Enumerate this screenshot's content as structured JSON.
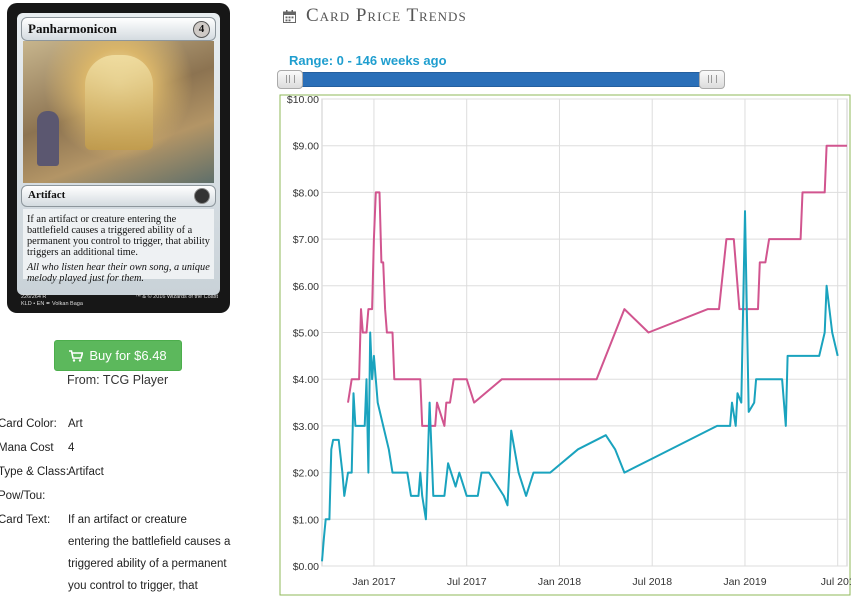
{
  "card": {
    "name": "Panharmonicon",
    "mana_cost": "4",
    "type_line": "Artifact",
    "rules_text": "If an artifact or creature entering the battlefield causes a triggered ability of a permanent you control to trigger, that ability triggers an additional time.",
    "flavor_text": "All who listen hear their own song, a unique melody played just for them.",
    "footer_number": "226/264 R",
    "footer_set": "KLD • EN ✒ Volkan Baga",
    "footer_copyright": "™ & © 2016 Wizards of the Coast"
  },
  "buy": {
    "label": "Buy for $6.48",
    "icon": "shopping-cart-icon",
    "color": "#5cb85c"
  },
  "from_text": "From: TCG Player",
  "info": [
    {
      "label": "Card Color:",
      "value": "Art"
    },
    {
      "label": "Mana Cost",
      "value": "4"
    },
    {
      "label": "Type & Class:",
      "value": "Artifact"
    },
    {
      "label": "Pow/Tou:",
      "value": ""
    },
    {
      "label": "Card Text:",
      "value": ""
    }
  ],
  "card_text_lines": [
    "If an artifact or creature",
    "entering the battlefield causes a",
    "triggered ability of a permanent",
    "you control to trigger, that"
  ],
  "trends": {
    "title": "Card Price Trends",
    "icon": "calendar-icon",
    "range_label": "Range: 0 - 146 weeks ago",
    "slider": {
      "min": 0,
      "max": 146,
      "low": 0,
      "high": 146,
      "track_color": "#2a6fb8"
    }
  },
  "chart_data": {
    "type": "line",
    "title": "",
    "xlabel": "",
    "ylabel": "",
    "ylim": [
      0,
      10
    ],
    "xlim": [
      2016.72,
      2019.55
    ],
    "grid": true,
    "legend": "none",
    "y_ticks": [
      "$0.00",
      "$1.00",
      "$2.00",
      "$3.00",
      "$4.00",
      "$5.00",
      "$6.00",
      "$7.00",
      "$8.00",
      "$9.00",
      "$10.00"
    ],
    "x_ticks": [
      {
        "label": "Jan 2017",
        "x": 2017.0
      },
      {
        "label": "Jul 2017",
        "x": 2017.5
      },
      {
        "label": "Jan 2018",
        "x": 2018.0
      },
      {
        "label": "Jul 2018",
        "x": 2018.5
      },
      {
        "label": "Jan 2019",
        "x": 2019.0
      },
      {
        "label": "Jul 201",
        "x": 2019.5
      }
    ],
    "series": [
      {
        "color": "#d1558f",
        "points": [
          [
            2016.86,
            3.5
          ],
          [
            2016.88,
            4.0
          ],
          [
            2016.92,
            4.0
          ],
          [
            2016.93,
            5.5
          ],
          [
            2016.94,
            5.0
          ],
          [
            2016.96,
            5.0
          ],
          [
            2016.97,
            5.5
          ],
          [
            2016.99,
            5.5
          ],
          [
            2017.0,
            7.0
          ],
          [
            2017.01,
            8.0
          ],
          [
            2017.03,
            8.0
          ],
          [
            2017.04,
            6.5
          ],
          [
            2017.05,
            6.5
          ],
          [
            2017.06,
            5.5
          ],
          [
            2017.07,
            5.0
          ],
          [
            2017.1,
            5.0
          ],
          [
            2017.11,
            4.0
          ],
          [
            2017.25,
            4.0
          ],
          [
            2017.26,
            3.0
          ],
          [
            2017.33,
            3.0
          ],
          [
            2017.34,
            3.5
          ],
          [
            2017.38,
            3.0
          ],
          [
            2017.39,
            3.5
          ],
          [
            2017.41,
            3.5
          ],
          [
            2017.43,
            4.0
          ],
          [
            2017.5,
            4.0
          ],
          [
            2017.54,
            3.5
          ],
          [
            2017.69,
            4.0
          ],
          [
            2017.95,
            4.0
          ],
          [
            2018.2,
            4.0
          ],
          [
            2018.35,
            5.5
          ],
          [
            2018.48,
            5.0
          ],
          [
            2018.8,
            5.5
          ],
          [
            2018.86,
            5.5
          ],
          [
            2018.9,
            7.0
          ],
          [
            2018.94,
            7.0
          ],
          [
            2018.97,
            5.5
          ],
          [
            2019.07,
            5.5
          ],
          [
            2019.08,
            6.5
          ],
          [
            2019.11,
            6.5
          ],
          [
            2019.13,
            7.0
          ],
          [
            2019.3,
            7.0
          ],
          [
            2019.31,
            8.0
          ],
          [
            2019.43,
            8.0
          ],
          [
            2019.44,
            9.0
          ],
          [
            2019.55,
            9.0
          ]
        ]
      },
      {
        "color": "#1aa3be",
        "points": [
          [
            2016.72,
            0.1
          ],
          [
            2016.73,
            0.6
          ],
          [
            2016.74,
            1.0
          ],
          [
            2016.76,
            1.0
          ],
          [
            2016.77,
            2.5
          ],
          [
            2016.78,
            2.7
          ],
          [
            2016.81,
            2.7
          ],
          [
            2016.83,
            2.0
          ],
          [
            2016.84,
            1.5
          ],
          [
            2016.86,
            2.0
          ],
          [
            2016.88,
            2.0
          ],
          [
            2016.89,
            3.7
          ],
          [
            2016.9,
            3.0
          ],
          [
            2016.95,
            3.0
          ],
          [
            2016.96,
            4.0
          ],
          [
            2016.97,
            2.0
          ],
          [
            2016.98,
            5.0
          ],
          [
            2016.99,
            4.0
          ],
          [
            2017.0,
            4.5
          ],
          [
            2017.01,
            4.0
          ],
          [
            2017.02,
            3.5
          ],
          [
            2017.05,
            3.0
          ],
          [
            2017.08,
            2.5
          ],
          [
            2017.1,
            2.0
          ],
          [
            2017.18,
            2.0
          ],
          [
            2017.2,
            1.5
          ],
          [
            2017.24,
            1.5
          ],
          [
            2017.25,
            2.0
          ],
          [
            2017.26,
            1.5
          ],
          [
            2017.28,
            1.0
          ],
          [
            2017.3,
            3.5
          ],
          [
            2017.32,
            1.5
          ],
          [
            2017.38,
            1.5
          ],
          [
            2017.4,
            2.2
          ],
          [
            2017.44,
            1.7
          ],
          [
            2017.46,
            2.0
          ],
          [
            2017.5,
            1.5
          ],
          [
            2017.56,
            1.5
          ],
          [
            2017.58,
            2.0
          ],
          [
            2017.62,
            2.0
          ],
          [
            2017.7,
            1.5
          ],
          [
            2017.72,
            1.3
          ],
          [
            2017.74,
            2.9
          ],
          [
            2017.78,
            2.0
          ],
          [
            2017.82,
            1.5
          ],
          [
            2017.86,
            2.0
          ],
          [
            2017.95,
            2.0
          ],
          [
            2018.1,
            2.5
          ],
          [
            2018.25,
            2.8
          ],
          [
            2018.3,
            2.5
          ],
          [
            2018.35,
            2.0
          ],
          [
            2018.5,
            2.3
          ],
          [
            2018.85,
            3.0
          ],
          [
            2018.92,
            3.0
          ],
          [
            2018.93,
            3.5
          ],
          [
            2018.95,
            3.0
          ],
          [
            2018.96,
            3.7
          ],
          [
            2018.98,
            3.5
          ],
          [
            2019.0,
            7.6
          ],
          [
            2019.02,
            3.3
          ],
          [
            2019.05,
            3.5
          ],
          [
            2019.06,
            4.0
          ],
          [
            2019.2,
            4.0
          ],
          [
            2019.22,
            3.0
          ],
          [
            2019.23,
            4.5
          ],
          [
            2019.4,
            4.5
          ],
          [
            2019.43,
            5.0
          ],
          [
            2019.44,
            6.0
          ],
          [
            2019.47,
            5.0
          ],
          [
            2019.5,
            4.5
          ]
        ]
      }
    ]
  }
}
